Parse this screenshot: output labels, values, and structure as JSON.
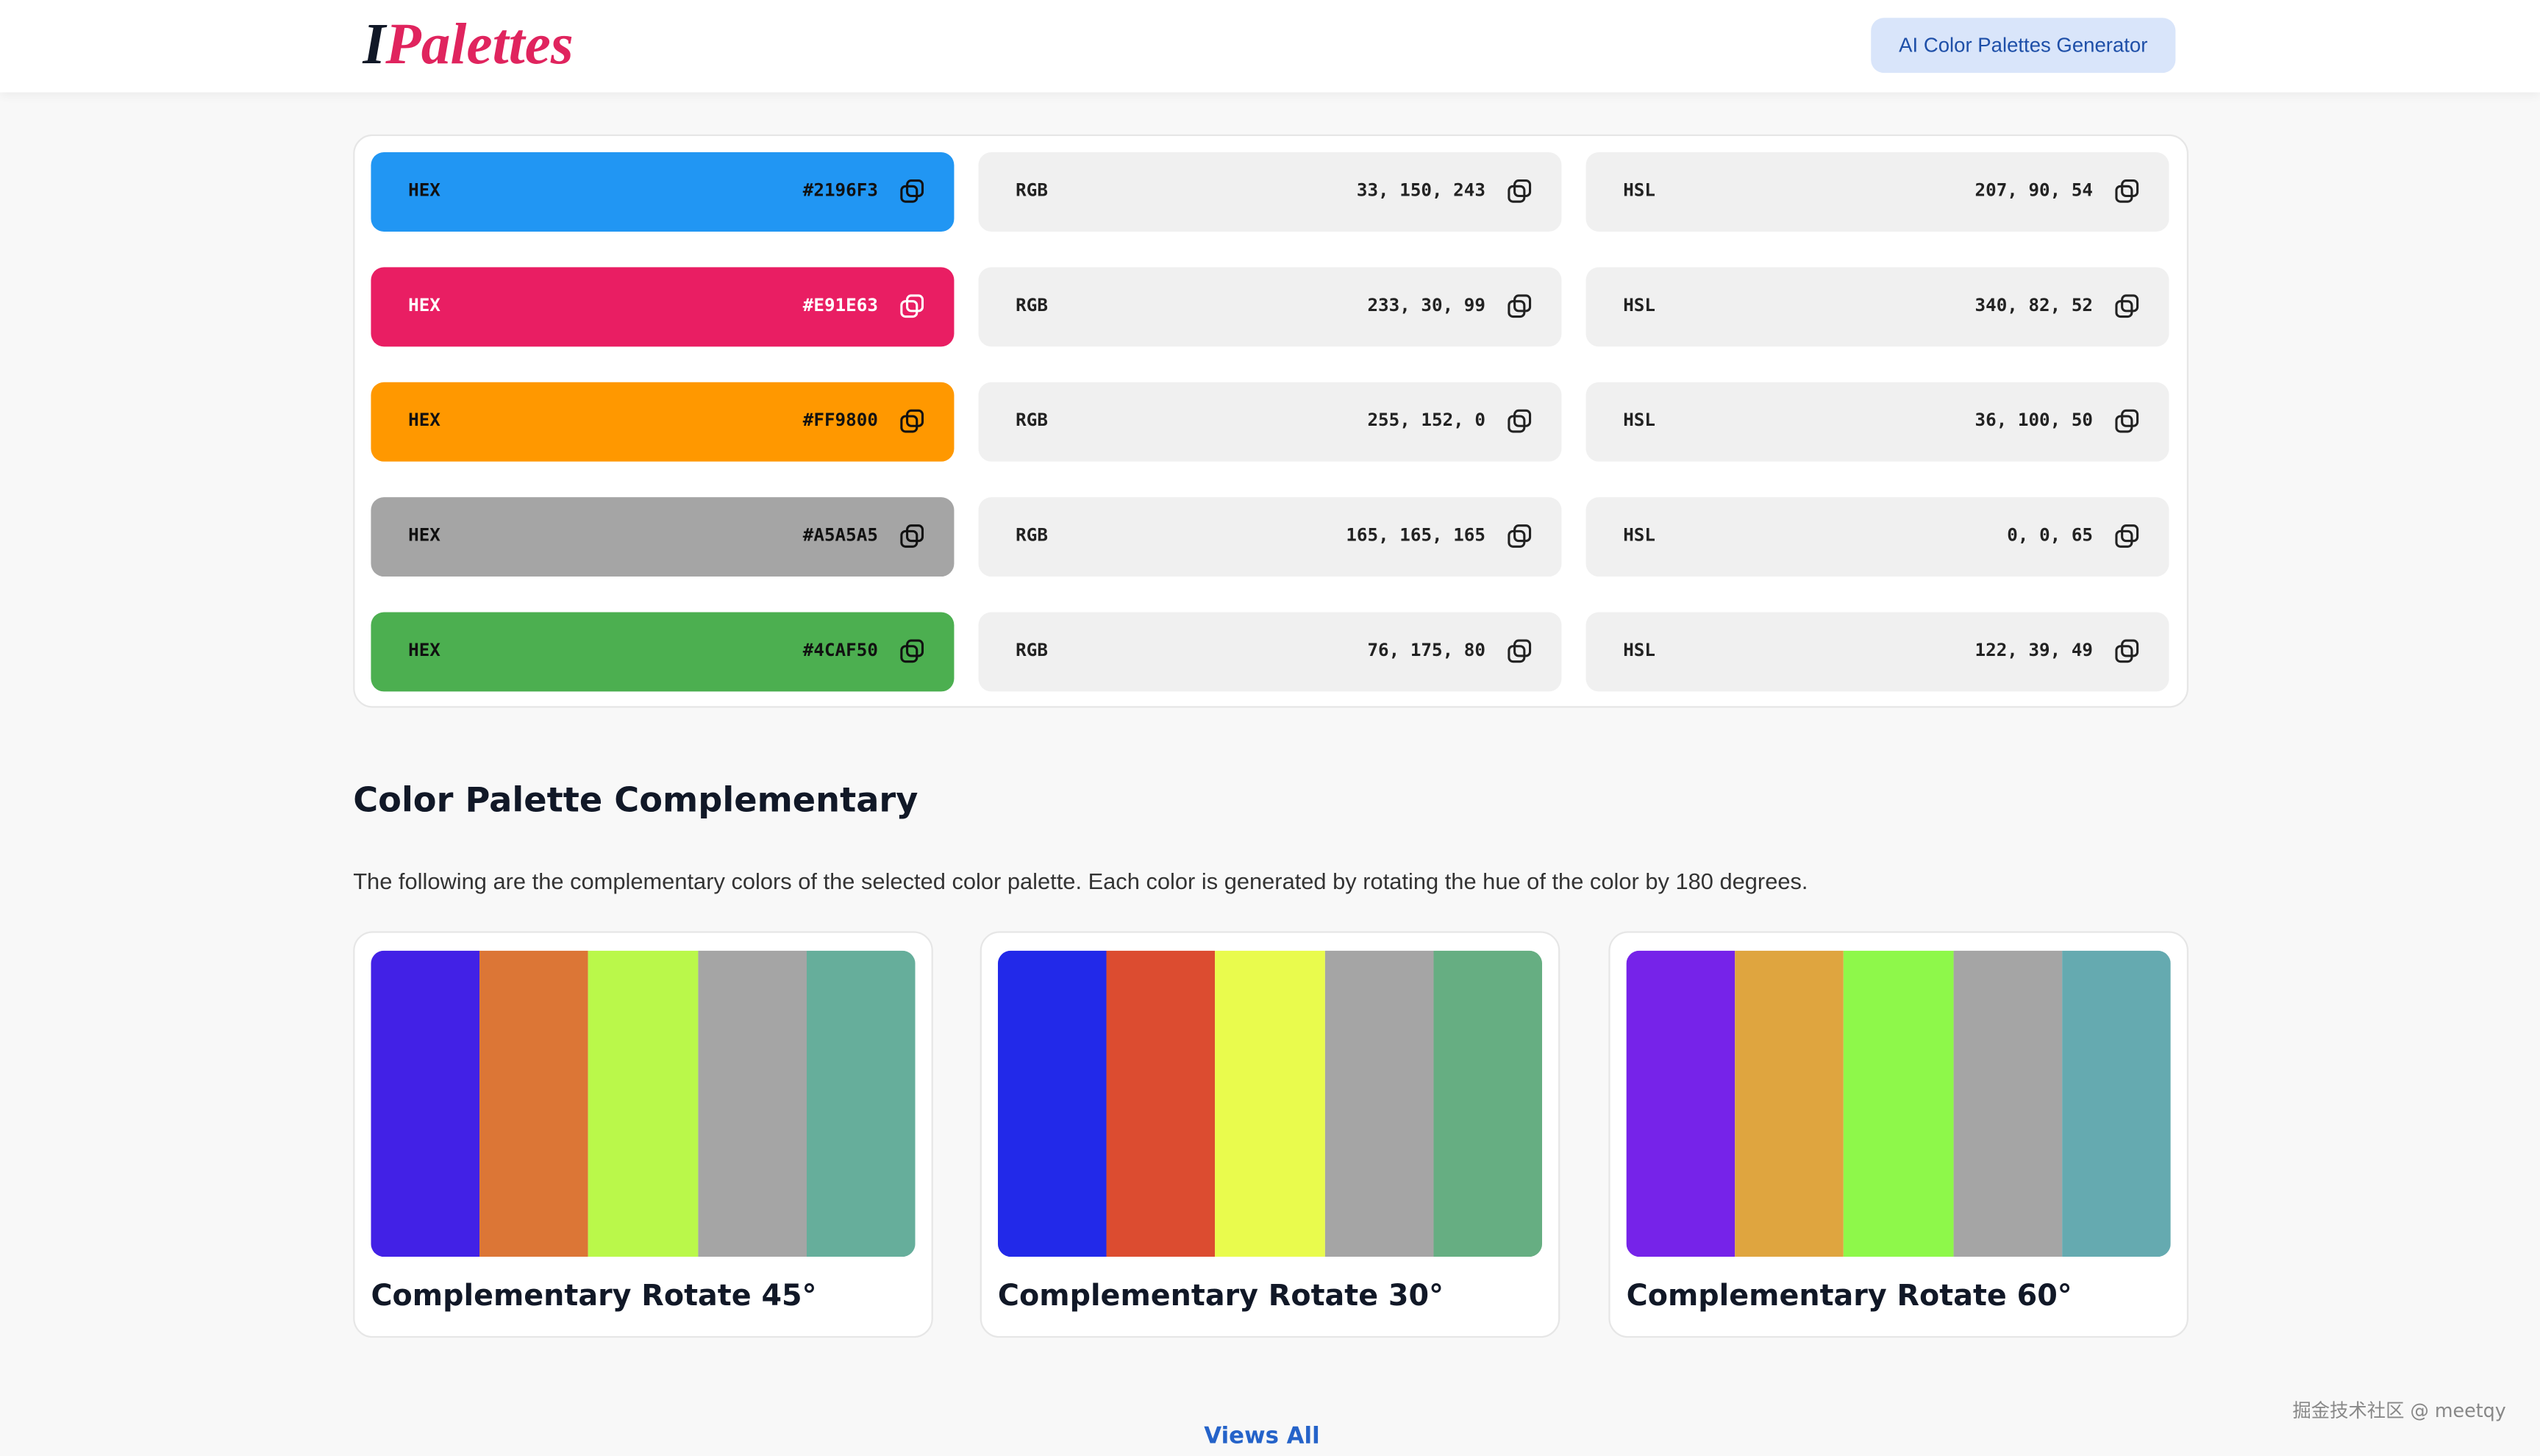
{
  "header": {
    "logo_i": "I",
    "logo_rest": "Palettes",
    "button": "AI Color Palettes Generator"
  },
  "labels": {
    "hex": "HEX",
    "rgb": "RGB",
    "hsl": "HSL"
  },
  "color_rows": [
    {
      "hex": "#2196F3",
      "rgb": "33, 150, 243",
      "hsl": "207, 90, 54",
      "text_color": "#111111"
    },
    {
      "hex": "#E91E63",
      "rgb": "233, 30, 99",
      "hsl": "340, 82, 52",
      "text_color": "#ffffff"
    },
    {
      "hex": "#FF9800",
      "rgb": "255, 152, 0",
      "hsl": "36, 100, 50",
      "text_color": "#111111"
    },
    {
      "hex": "#A5A5A5",
      "rgb": "165, 165, 165",
      "hsl": "0, 0, 65",
      "text_color": "#111111"
    },
    {
      "hex": "#4CAF50",
      "rgb": "76, 175, 80",
      "hsl": "122, 39, 49",
      "text_color": "#111111"
    }
  ],
  "complementary": {
    "title": "Color Palette Complementary",
    "description": "The following are the complementary colors of the selected color palette. Each color is generated by rotating the hue of the color by 180 degrees.",
    "cards": [
      {
        "title": "Complementary Rotate 45°",
        "colors": [
          "#4221e6",
          "#dc7636",
          "#baf84a",
          "#a5a5a5",
          "#66ae9b"
        ]
      },
      {
        "title": "Complementary Rotate 30°",
        "colors": [
          "#2229e9",
          "#dc4c30",
          "#e9fb4d",
          "#a5a5a5",
          "#66ae82"
        ]
      },
      {
        "title": "Complementary Rotate 60°",
        "colors": [
          "#7623e9",
          "#dfa53f",
          "#8ef84a",
          "#a5a5a5",
          "#65aab0"
        ]
      }
    ]
  },
  "footer": {
    "link": "Views All",
    "watermark": "掘金技术社区 @ meetqy"
  }
}
